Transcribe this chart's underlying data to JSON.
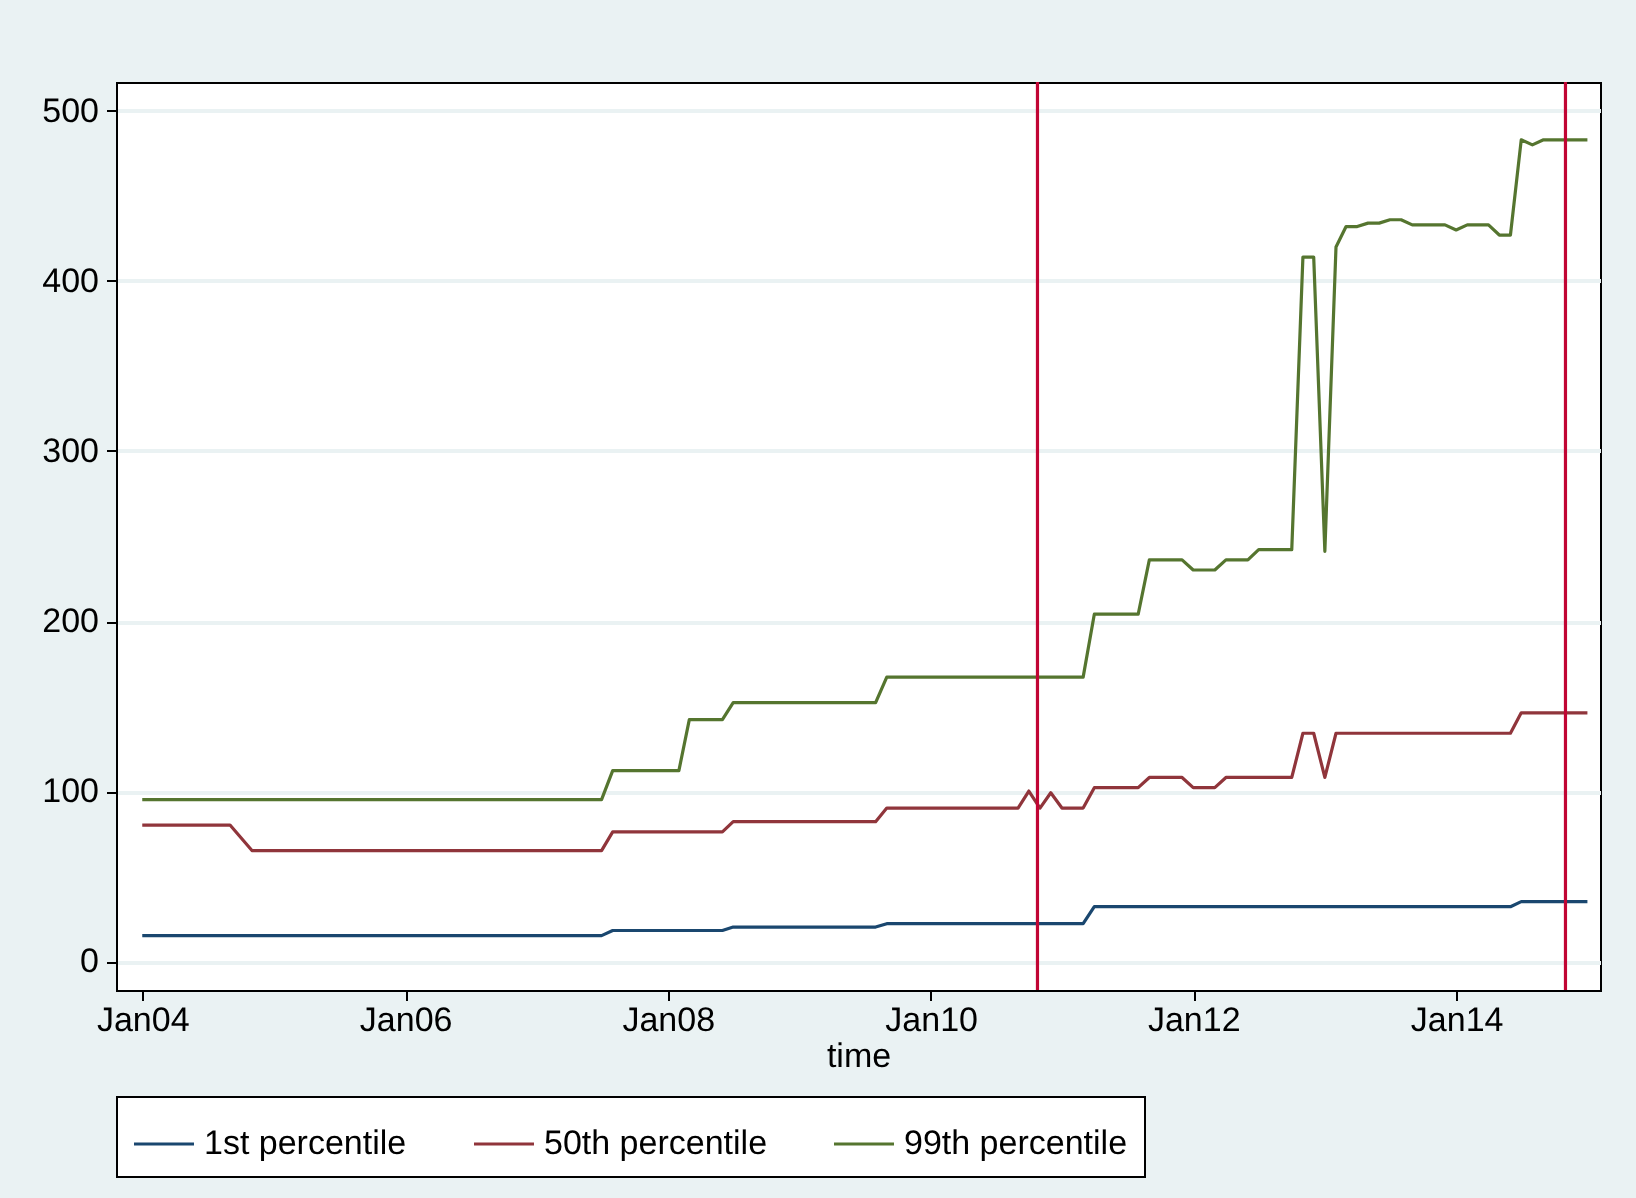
{
  "chart_data": {
    "type": "line",
    "xlabel": "time",
    "xlim": [
      "2003-10-20",
      "2015-02-05"
    ],
    "xticks": [
      {
        "value": "2004-01-01",
        "label": "Jan04"
      },
      {
        "value": "2006-01-01",
        "label": "Jan06"
      },
      {
        "value": "2008-01-01",
        "label": "Jan08"
      },
      {
        "value": "2010-01-01",
        "label": "Jan10"
      },
      {
        "value": "2012-01-01",
        "label": "Jan12"
      },
      {
        "value": "2014-01-01",
        "label": "Jan14"
      }
    ],
    "ylim": [
      -17,
      517
    ],
    "yticks": [
      0,
      100,
      200,
      300,
      400,
      500
    ],
    "grid": "y",
    "legend": "bottom",
    "line_style": "solid",
    "marker": "none",
    "series": [
      {
        "name": "1st percentile",
        "color": "#1a476f",
        "x": [
          "2004-01",
          "2007-07",
          "2007-08",
          "2008-06",
          "2008-07",
          "2009-08",
          "2009-09",
          "2011-03",
          "2011-04",
          "2014-06",
          "2014-07",
          "2015-01"
        ],
        "values": [
          15,
          15,
          18,
          18,
          20,
          20,
          22,
          22,
          32,
          32,
          35,
          35
        ]
      },
      {
        "name": "50th percentile",
        "color": "#90353b",
        "x": [
          "2004-01",
          "2004-09",
          "2004-11",
          "2007-07",
          "2007-08",
          "2008-06",
          "2008-07",
          "2009-08",
          "2009-09",
          "2010-09",
          "2010-10",
          "2010-11",
          "2010-12",
          "2011-01",
          "2011-03",
          "2011-04",
          "2011-08",
          "2011-09",
          "2011-12",
          "2012-01",
          "2012-03",
          "2012-04",
          "2012-10",
          "2012-11",
          "2012-12",
          "2013-01",
          "2013-02",
          "2014-06",
          "2014-07",
          "2015-01"
        ],
        "values": [
          80,
          80,
          65,
          65,
          76,
          76,
          82,
          82,
          90,
          90,
          100,
          90,
          99,
          90,
          90,
          102,
          102,
          108,
          108,
          102,
          102,
          108,
          108,
          134,
          134,
          108,
          134,
          134,
          146,
          146
        ]
      },
      {
        "name": "99th percentile",
        "color": "#55752f",
        "x": [
          "2004-01",
          "2007-07",
          "2007-08",
          "2008-02",
          "2008-03",
          "2008-06",
          "2008-07",
          "2009-08",
          "2009-09",
          "2011-03",
          "2011-04",
          "2011-08",
          "2011-09",
          "2011-12",
          "2012-01",
          "2012-03",
          "2012-04",
          "2012-06",
          "2012-07",
          "2012-10",
          "2012-11",
          "2012-12",
          "2013-01",
          "2013-02",
          "2013-03",
          "2013-04",
          "2013-05",
          "2013-06",
          "2013-07",
          "2013-08",
          "2013-09",
          "2013-12",
          "2014-01",
          "2014-02",
          "2014-04",
          "2014-05",
          "2014-06",
          "2014-07",
          "2014-08",
          "2014-09",
          "2015-01"
        ],
        "values": [
          95,
          95,
          112,
          112,
          142,
          142,
          152,
          152,
          167,
          167,
          204,
          204,
          236,
          236,
          230,
          230,
          236,
          236,
          242,
          242,
          414,
          414,
          241,
          420,
          432,
          432,
          434,
          434,
          436,
          436,
          433,
          433,
          430,
          433,
          433,
          427,
          427,
          483,
          480,
          483,
          483
        ]
      }
    ],
    "ref_lines": [
      {
        "axis": "x",
        "value": "2010-10-25",
        "color": "#c10534"
      },
      {
        "axis": "x",
        "value": "2014-11-01",
        "color": "#c10534"
      }
    ]
  }
}
